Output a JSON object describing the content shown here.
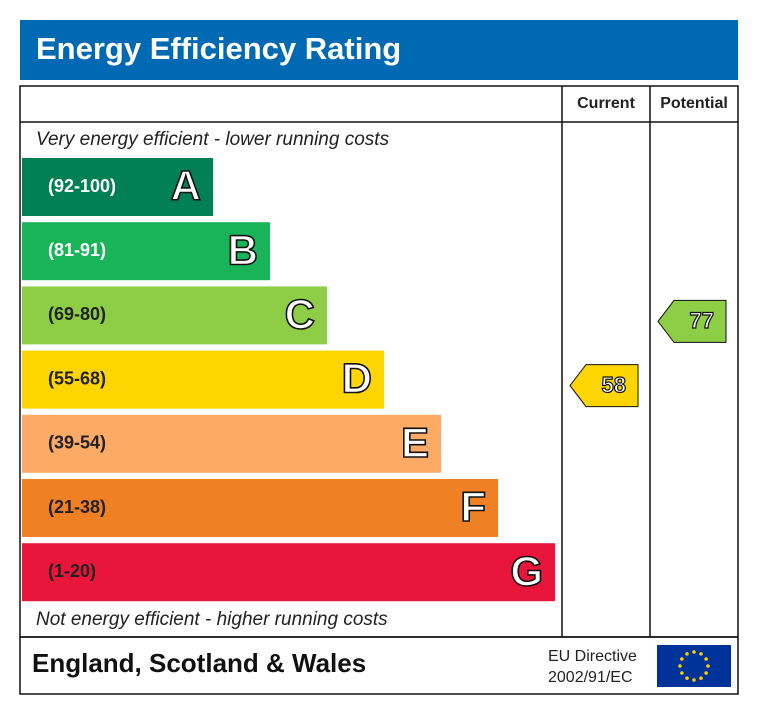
{
  "title": "Energy Efficiency Rating",
  "columns": {
    "current": "Current",
    "potential": "Potential"
  },
  "top_note": "Very energy efficient - lower running costs",
  "bands": [
    {
      "range": "(92-100)",
      "letter": "A",
      "color": "#008054",
      "label_color": "#ffffff"
    },
    {
      "range": "(81-91)",
      "letter": "B",
      "color": "#19b459",
      "label_color": "#ffffff"
    },
    {
      "range": "(69-80)",
      "letter": "C",
      "color": "#8dce46",
      "label_color": "#222222"
    },
    {
      "range": "(55-68)",
      "letter": "D",
      "color": "#ffd500",
      "label_color": "#222222"
    },
    {
      "range": "(39-54)",
      "letter": "E",
      "color": "#fcaa65",
      "label_color": "#222222"
    },
    {
      "range": "(21-38)",
      "letter": "F",
      "color": "#ef8023",
      "label_color": "#222222"
    },
    {
      "range": "(1-20)",
      "letter": "G",
      "color": "#e9153b",
      "label_color": "#222222"
    }
  ],
  "bottom_note": "Not energy efficient - higher running costs",
  "current_rating": 58,
  "potential_rating": 77,
  "footer": {
    "region": "England, Scotland & Wales",
    "directive": [
      "EU Directive",
      "2002/91/EC"
    ]
  }
}
